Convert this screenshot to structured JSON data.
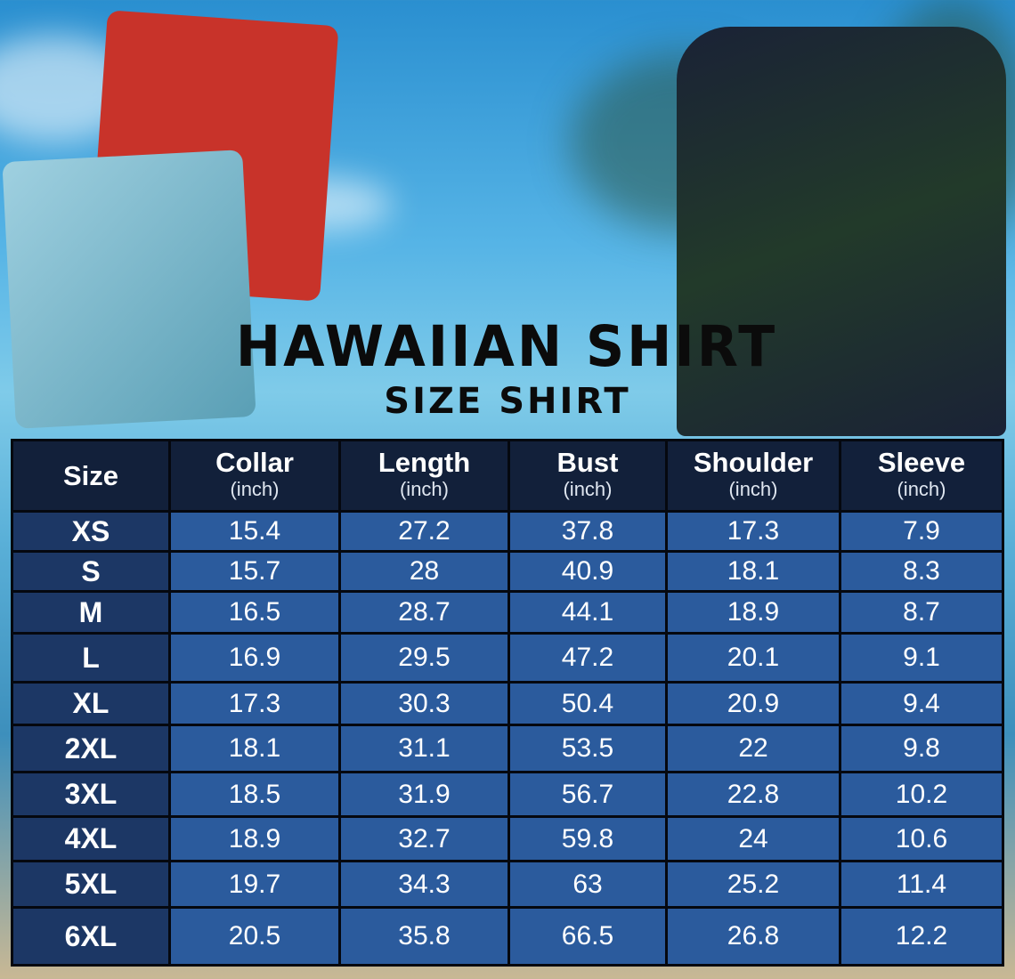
{
  "title": "HAWAIIAN SHIRT",
  "subtitle": "SIZE SHIRT",
  "table": {
    "headers": [
      {
        "label": "Size",
        "unit": ""
      },
      {
        "label": "Collar",
        "unit": "(inch)"
      },
      {
        "label": "Length",
        "unit": "(inch)"
      },
      {
        "label": "Bust",
        "unit": "(inch)"
      },
      {
        "label": "Shoulder",
        "unit": "(inch)"
      },
      {
        "label": "Sleeve",
        "unit": "(inch)"
      }
    ],
    "rows": [
      [
        "XS",
        "15.4",
        "27.2",
        "37.8",
        "17.3",
        "7.9"
      ],
      [
        "S",
        "15.7",
        "28",
        "40.9",
        "18.1",
        "8.3"
      ],
      [
        "M",
        "16.5",
        "28.7",
        "44.1",
        "18.9",
        "8.7"
      ],
      [
        "L",
        "16.9",
        "29.5",
        "47.2",
        "20.1",
        "9.1"
      ],
      [
        "XL",
        "17.3",
        "30.3",
        "50.4",
        "20.9",
        "9.4"
      ],
      [
        "2XL",
        "18.1",
        "31.1",
        "53.5",
        "22",
        "9.8"
      ],
      [
        "3XL",
        "18.5",
        "31.9",
        "56.7",
        "22.8",
        "10.2"
      ],
      [
        "4XL",
        "18.9",
        "32.7",
        "59.8",
        "24",
        "10.6"
      ],
      [
        "5XL",
        "19.7",
        "34.3",
        "63",
        "25.2",
        "11.4"
      ],
      [
        "6XL",
        "20.5",
        "35.8",
        "66.5",
        "26.8",
        "12.2"
      ]
    ]
  },
  "colors": {
    "header": "#12203a",
    "size_col": "#1c3765",
    "cell": "#2b5b9d"
  }
}
